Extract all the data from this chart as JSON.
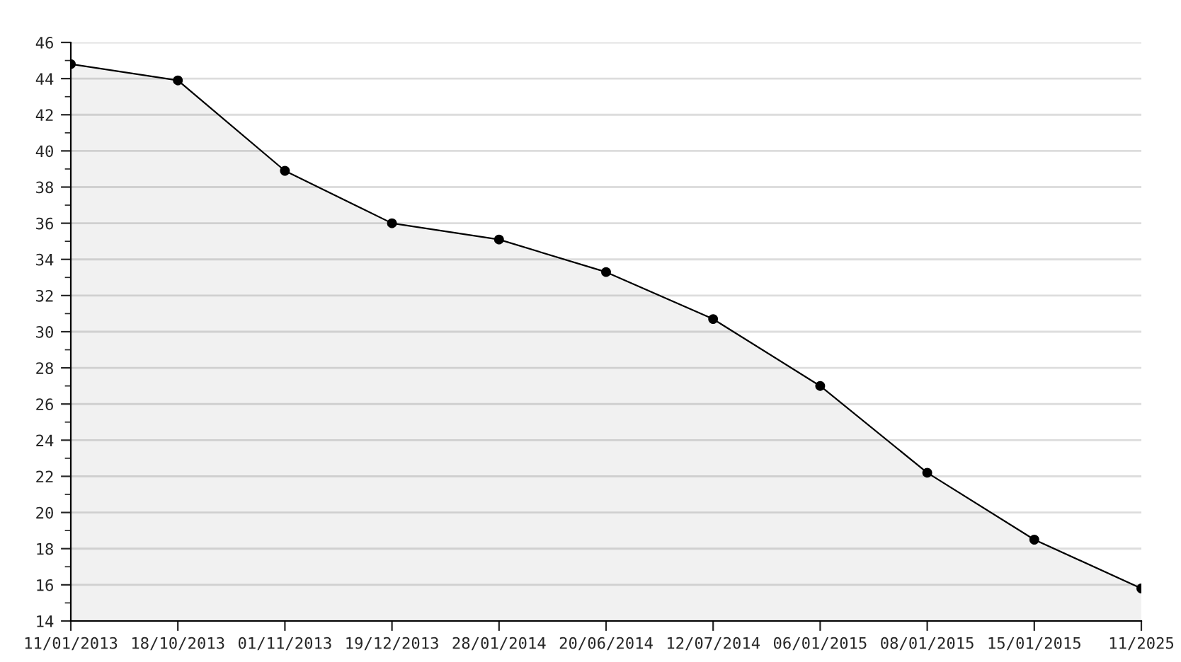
{
  "chart_data": {
    "type": "area",
    "categories": [
      "11/01/2013",
      "18/10/2013",
      "01/11/2013",
      "19/12/2013",
      "28/01/2014",
      "20/06/2014",
      "12/07/2014",
      "06/01/2015",
      "08/01/2015",
      "15/01/2015",
      "11/2025"
    ],
    "series": [
      {
        "color": "#000000",
        "values": [
          44.8,
          43.9,
          38.9,
          36.0,
          35.1,
          33.3,
          30.7,
          27.0,
          22.2,
          18.5,
          15.8
        ]
      }
    ],
    "ylim": [
      14,
      46
    ],
    "yticks": [
      14,
      16,
      18,
      20,
      22,
      24,
      26,
      28,
      30,
      32,
      34,
      36,
      38,
      40,
      42,
      44,
      46
    ],
    "grid": "y",
    "marker": "circle",
    "line_style": "solid"
  }
}
